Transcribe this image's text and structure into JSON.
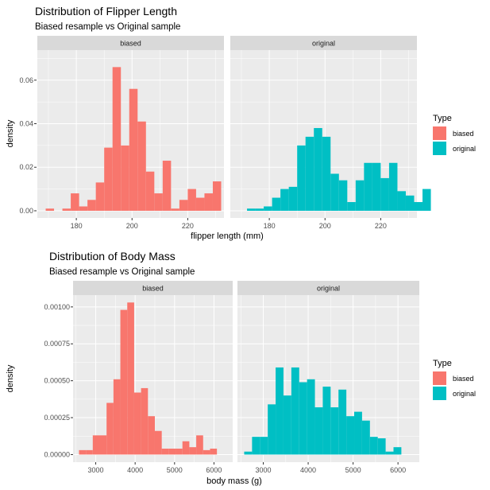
{
  "chart_data": [
    {
      "type": "bar",
      "title": "Distribution of Flipper Length",
      "subtitle": "Biased resample vs Original sample",
      "xlabel": "flipper length (mm)",
      "ylabel": "density",
      "xlim": [
        166,
        233
      ],
      "ylim": [
        -0.0033,
        0.0738
      ],
      "x_ticks": [
        180,
        200,
        220
      ],
      "x_tick_labels": [
        "180",
        "200",
        "220"
      ],
      "y_ticks": [
        0,
        0.02,
        0.04,
        0.06
      ],
      "y_tick_labels": [
        "0.00",
        "0.02",
        "0.04",
        "0.06"
      ],
      "bin_start": 169,
      "bin_width": 3,
      "panels": [
        {
          "label": "biased",
          "fill": "#F8766D",
          "values": [
            0.001,
            0,
            0.001,
            0.008,
            0.002,
            0.005,
            0.013,
            0.029,
            0.066,
            0.03,
            0.056,
            0.041,
            0.018,
            0.008,
            0.023,
            0.001,
            0.005,
            0.01,
            0.006,
            0.008,
            0.0135
          ]
        },
        {
          "label": "original",
          "fill": "#00BFC4",
          "values": [
            0,
            0.001,
            0.001,
            0.002,
            0.006,
            0.01,
            0.011,
            0.03,
            0.034,
            0.038,
            0.034,
            0.017,
            0.014,
            0.004,
            0.014,
            0.022,
            0.022,
            0.015,
            0.022,
            0.009,
            0.007,
            0.004,
            0.01
          ]
        }
      ]
    },
    {
      "type": "bar",
      "title": "Distribution of Body Mass",
      "subtitle": "Biased resample vs Original sample",
      "xlabel": "body mass (g)",
      "ylabel": "density",
      "xlim": [
        2425,
        6475
      ],
      "ylim": [
        -5.15e-05,
        0.00108
      ],
      "x_ticks": [
        3000,
        4000,
        5000,
        6000
      ],
      "x_tick_labels": [
        "3000",
        "4000",
        "5000",
        "6000"
      ],
      "y_ticks": [
        0,
        0.00025,
        0.0005,
        0.00075,
        0.001
      ],
      "y_tick_labels": [
        "0.00000",
        "0.00025",
        "0.00050",
        "0.00075",
        "0.00100"
      ],
      "bin_start": 2575,
      "bin_width": 175,
      "panels": [
        {
          "label": "biased",
          "fill": "#F8766D",
          "values": [
            3e-05,
            3e-05,
            0.00013,
            0.00013,
            0.00035,
            0.00051,
            0.00098,
            0.00103,
            0.00042,
            0.00045,
            0.00026,
            0.00016,
            4e-05,
            4e-05,
            4e-05,
            9e-05,
            5e-05,
            0.00013,
            3e-05,
            4e-05
          ]
        },
        {
          "label": "original",
          "fill": "#00BFC4",
          "values": [
            2e-05,
            0.00012,
            0.00012,
            0.00034,
            0.00059,
            0.0004,
            0.00059,
            0.00049,
            0.00051,
            0.00032,
            0.00046,
            0.00032,
            0.00044,
            0.00026,
            0.00029,
            0.00023,
            0.00012,
            0.00011,
            2e-05,
            5e-05
          ]
        }
      ]
    }
  ],
  "legend": {
    "title": "Type",
    "position": "right",
    "items": [
      {
        "label": "biased",
        "color": "#F8766D"
      },
      {
        "label": "original",
        "color": "#00BFC4"
      }
    ]
  },
  "colors": {
    "panel_bg": "#EBEBEB",
    "grid": "#FFFFFF",
    "strip_bg": "#D9D9D9"
  }
}
